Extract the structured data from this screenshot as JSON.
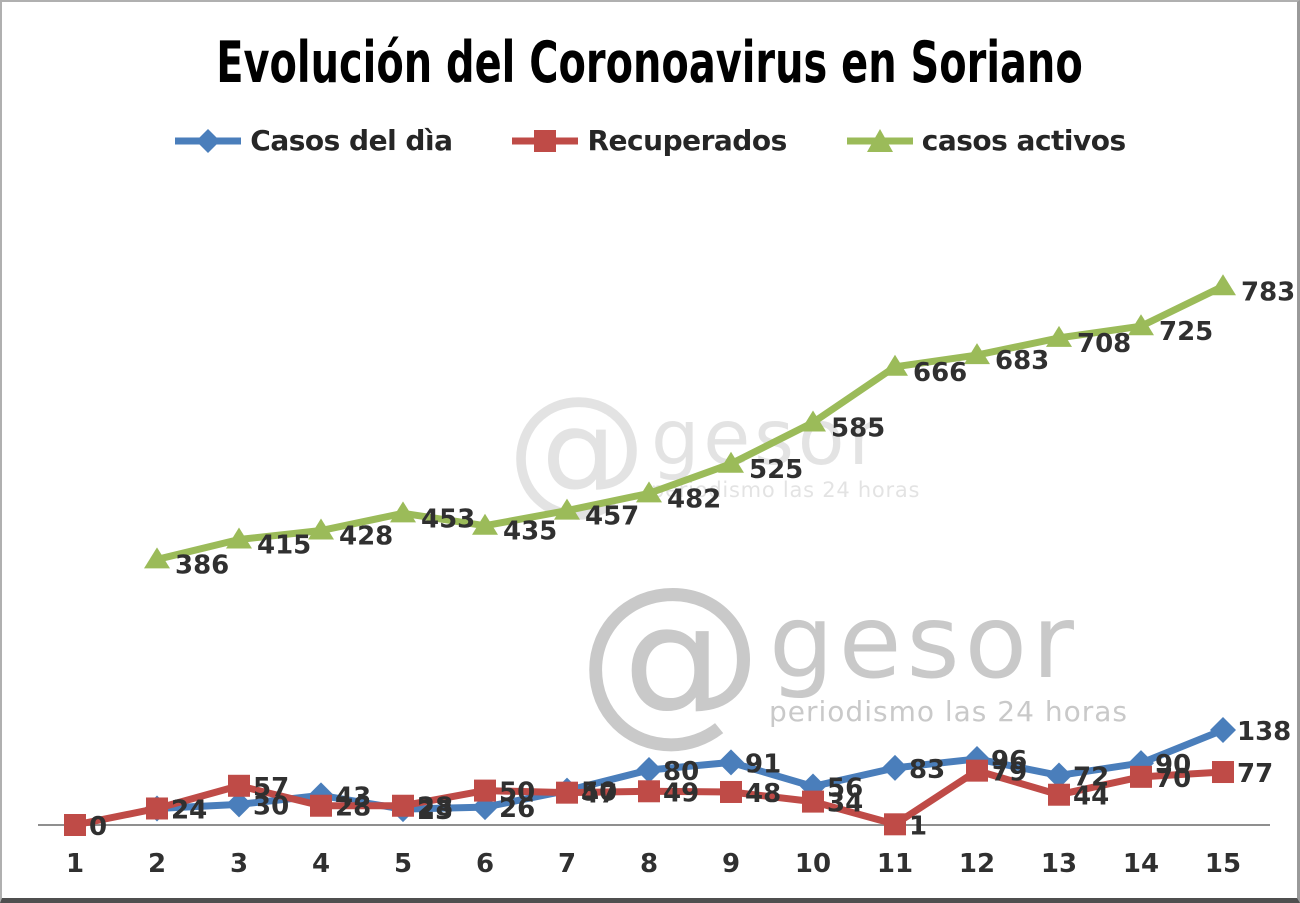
{
  "watermark": {
    "at_symbol": "@",
    "brand": "gesor",
    "tagline": "periodismo las 24 horas"
  },
  "chart_data": {
    "type": "line",
    "title": "Evolución del Coronoavirus en Soriano",
    "xlabel": "",
    "ylabel": "",
    "x": [
      1,
      2,
      3,
      4,
      5,
      6,
      7,
      8,
      9,
      10,
      11,
      12,
      13,
      14,
      15
    ],
    "ylim": [
      0,
      830
    ],
    "grid": false,
    "legend_position": "top",
    "axis_color": "#8f8f8f",
    "label_color": "#303030",
    "series": [
      {
        "name": "Casos del dìa",
        "color": "#4a7ebb",
        "marker": "diamond",
        "values": [
          null,
          24,
          30,
          43,
          23,
          26,
          50,
          80,
          91,
          56,
          83,
          96,
          72,
          90,
          138
        ]
      },
      {
        "name": "Recuperados",
        "color": "#bf4b47",
        "marker": "square",
        "values": [
          0,
          24,
          57,
          28,
          28,
          50,
          47,
          49,
          48,
          34,
          1,
          79,
          44,
          70,
          77
        ]
      },
      {
        "name": "casos activos",
        "color": "#9bbb59",
        "marker": "triangle",
        "values": [
          null,
          386,
          415,
          428,
          453,
          435,
          457,
          482,
          525,
          585,
          666,
          683,
          708,
          725,
          783
        ]
      }
    ]
  }
}
